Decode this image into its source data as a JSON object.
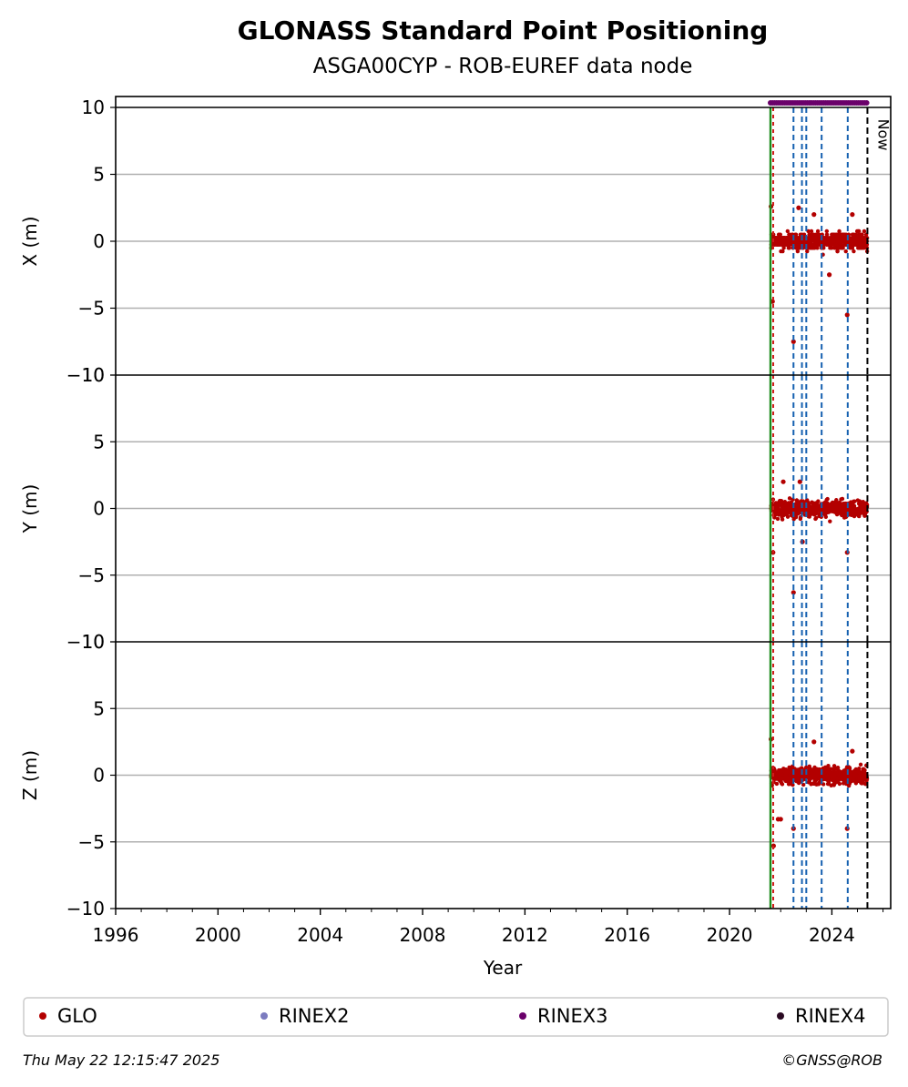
{
  "chart_data": {
    "type": "scatter",
    "title": "GLONASS Standard Point Positioning",
    "subtitle": "ASGA00CYP - ROB-EUREF data node",
    "xlabel": "Year",
    "xlim": [
      1996,
      2026.3
    ],
    "x_ticks": [
      "1996",
      "2000",
      "2004",
      "2008",
      "2012",
      "2016",
      "2020",
      "2024"
    ],
    "now_label": "Now",
    "now_year": 2025.39,
    "panels": [
      {
        "ylabel": "X (m)",
        "ylim": [
          -10,
          10
        ],
        "yticks": [
          "10",
          "5",
          "0",
          "−5",
          "−10"
        ]
      },
      {
        "ylabel": "Y (m)",
        "ylim": [
          -10,
          10
        ],
        "yticks": [
          "10",
          "5",
          "0",
          "−5",
          "−10"
        ]
      },
      {
        "ylabel": "Z (m)",
        "ylim": [
          -10,
          10
        ],
        "yticks": [
          "10",
          "5",
          "0",
          "−5",
          "−10"
        ]
      }
    ],
    "data_range_years": [
      2021.6,
      2025.39
    ],
    "series": [
      {
        "name": "GLO",
        "color": "#b30000"
      },
      {
        "name": "RINEX2",
        "color": "#7b7bbf"
      },
      {
        "name": "RINEX3",
        "color": "#6a006a"
      },
      {
        "name": "RINEX4",
        "color": "#2a0a22"
      }
    ],
    "event_lines": {
      "equipment_change_years": [
        2022.5,
        2022.83,
        2023.0,
        2023.6,
        2024.62
      ],
      "start_year": 2021.6,
      "start_colors": [
        "#1a8a1a",
        "#d11a1a"
      ]
    },
    "outliers": {
      "x": [
        [
          2021.62,
          2.6
        ],
        [
          2021.68,
          -4.5
        ],
        [
          2022.5,
          -7.5
        ],
        [
          2022.7,
          2.5
        ],
        [
          2023.3,
          2.0
        ],
        [
          2023.9,
          -2.5
        ],
        [
          2024.6,
          -5.5
        ],
        [
          2024.8,
          2.0
        ]
      ],
      "y": [
        [
          2021.7,
          -3.3
        ],
        [
          2022.1,
          2.0
        ],
        [
          2022.5,
          -6.3
        ],
        [
          2022.75,
          2.0
        ],
        [
          2022.85,
          -2.5
        ],
        [
          2024.6,
          -3.3
        ]
      ],
      "z": [
        [
          2021.62,
          2.7
        ],
        [
          2021.72,
          -5.3
        ],
        [
          2021.9,
          -3.3
        ],
        [
          2022.0,
          -3.3
        ],
        [
          2022.5,
          -4.0
        ],
        [
          2023.3,
          2.5
        ],
        [
          2024.6,
          -4.0
        ],
        [
          2024.8,
          1.8
        ]
      ]
    },
    "grid": true,
    "legend_position": "bottom"
  },
  "footer": {
    "timestamp": "Thu May 22 12:15:47 2025",
    "credit": "©GNSS@ROB"
  }
}
